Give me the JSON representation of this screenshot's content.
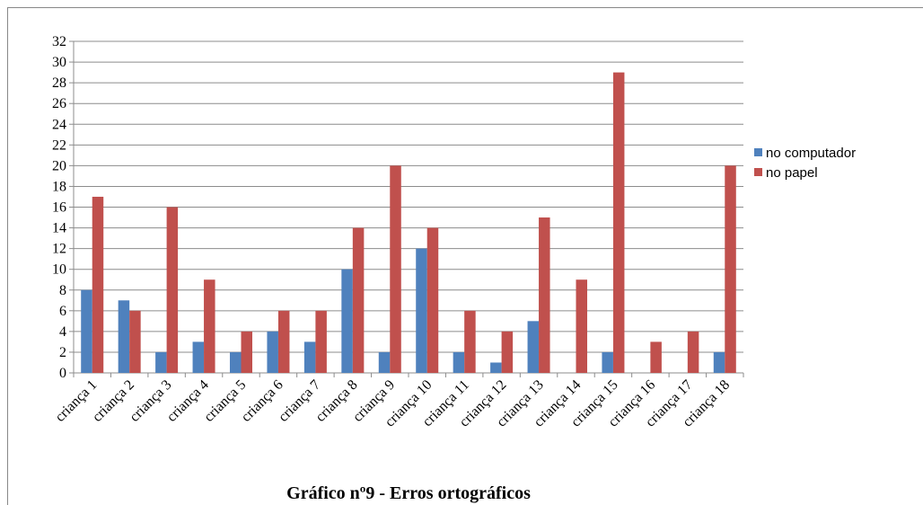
{
  "chart_data": {
    "type": "bar",
    "title": "Gráfico nº9 - Erros ortográficos",
    "categories": [
      "criança 1",
      "criança 2",
      "criança 3",
      "criança 4",
      "criança 5",
      "criança 6",
      "criança 7",
      "criança 8",
      "criança 9",
      "criança 10",
      "criança 11",
      "criança 12",
      "criança 13",
      "criança 14",
      "criança 15",
      "criança 16",
      "criança 17",
      "criança 18"
    ],
    "series": [
      {
        "name": "no computador",
        "color": "#4f81bd",
        "values": [
          8,
          7,
          2,
          3,
          2,
          4,
          3,
          10,
          2,
          12,
          2,
          1,
          5,
          0,
          2,
          0,
          0,
          2
        ]
      },
      {
        "name": "no papel",
        "color": "#c0504d",
        "values": [
          17,
          6,
          16,
          9,
          4,
          6,
          6,
          14,
          20,
          14,
          6,
          4,
          15,
          9,
          29,
          3,
          4,
          20
        ]
      }
    ],
    "ylim": [
      0,
      32
    ],
    "yticks": [
      0,
      2,
      4,
      6,
      8,
      10,
      12,
      14,
      16,
      18,
      20,
      22,
      24,
      26,
      28,
      30,
      32
    ],
    "grid": true,
    "legend": "right"
  }
}
